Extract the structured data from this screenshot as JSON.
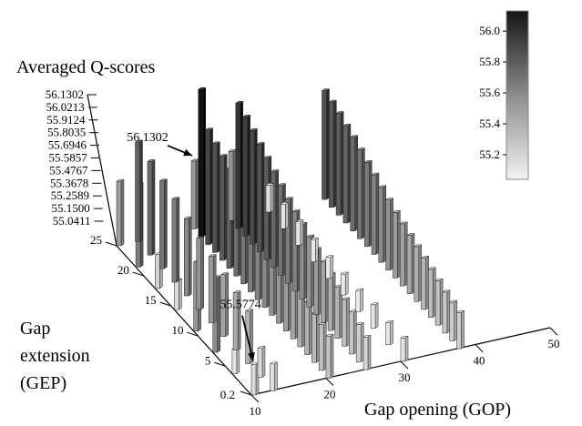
{
  "chart_data": {
    "type": "bar3d",
    "title": "Averaged Q-scores",
    "xlabel": "Gap opening (GOP)",
    "ylabel": "Gap extension (GEP)",
    "x_ticks": [
      "10",
      "20",
      "30",
      "40",
      "50"
    ],
    "y_ticks": [
      "0.2",
      "5",
      "10",
      "15",
      "20",
      "25"
    ],
    "z_ticks": [
      "55.0411",
      "55.1500",
      "55.2589",
      "55.3678",
      "55.4767",
      "55.5857",
      "55.6946",
      "55.8035",
      "55.9124",
      "56.0213",
      "56.1302"
    ],
    "zlim": [
      55.0411,
      56.1302
    ],
    "colorbar": {
      "ticks": [
        "55.2",
        "55.4",
        "55.6",
        "55.8",
        "56.0"
      ],
      "range": [
        55.0411,
        56.1302
      ]
    },
    "annotations": [
      {
        "text": "56.1302",
        "gop": 20,
        "gep": 25
      },
      {
        "text": "55.5774",
        "gop": 10,
        "gep": 0.2
      }
    ],
    "rows": [
      {
        "gop": 10,
        "values": [
          55.42,
          55.58,
          55.16,
          55.12,
          55.46,
          55.51,
          55.08,
          55.13
        ]
      },
      {
        "gop": 12.5,
        "values": [
          55.72,
          55.67,
          55.62,
          55.58,
          55.53,
          55.48,
          55.44,
          55.4,
          55.36,
          55.32,
          55.12,
          55.1
        ]
      },
      {
        "gop": 20,
        "values": [
          55.45,
          56.13,
          55.85,
          55.8,
          55.76,
          55.72,
          55.66,
          55.62,
          55.58,
          55.55,
          55.52,
          55.48,
          55.45,
          55.42,
          55.38,
          55.35,
          55.32,
          55.29,
          55.26,
          55.23
        ]
      },
      {
        "gop": 25,
        "values": [
          55.46,
          55.94,
          55.89,
          55.84,
          55.79,
          55.74,
          55.69,
          55.64,
          55.59,
          55.55,
          55.51,
          55.47,
          55.43,
          55.39,
          55.35,
          55.31,
          55.27,
          55.23,
          55.19,
          55.15
        ]
      },
      {
        "gop": 30,
        "values": [
          55.1,
          55.08,
          55.07,
          55.06,
          55.05,
          55.05,
          55.05,
          55.07,
          55.06,
          55.07
        ]
      },
      {
        "gop": 37.5,
        "values": [
          55.8,
          55.77,
          55.74,
          55.7,
          55.67,
          55.63,
          55.59,
          55.55,
          55.51,
          55.47,
          55.43,
          55.4,
          55.37,
          55.34,
          55.31,
          55.28,
          55.25,
          55.22,
          55.2,
          55.18
        ]
      }
    ]
  }
}
